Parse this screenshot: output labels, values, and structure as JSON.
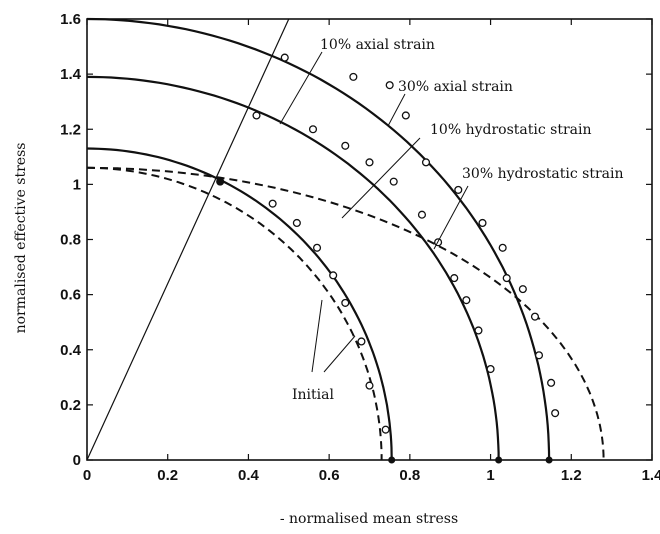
{
  "chart_data": {
    "type": "line",
    "title": "",
    "xlabel": "- normalised mean stress",
    "ylabel": "normalised effective stress",
    "xlim": [
      0,
      1.4
    ],
    "ylim": [
      0,
      1.6
    ],
    "xticks": [
      "0",
      "0.2",
      "0.4",
      "0.6",
      "0.8",
      "1",
      "1.2",
      "1.4"
    ],
    "yticks": [
      "0",
      "0.2",
      "0.4",
      "0.6",
      "0.8",
      "1",
      "1.2",
      "1.4",
      "1.6"
    ],
    "grid": false,
    "series": [
      {
        "style": "solid",
        "x_intercept": 0.755,
        "y_intercept": 1.13
      },
      {
        "style": "solid",
        "x_intercept": 1.02,
        "y_intercept": 1.39
      },
      {
        "style": "solid",
        "x_intercept": 1.145,
        "y_intercept": 1.6
      },
      {
        "style": "dashed",
        "x_intercept": 0.73,
        "y_intercept": 1.06
      },
      {
        "style": "dashed",
        "x_intercept": 1.28,
        "y_intercept": 1.06
      },
      {
        "style": "markers",
        "points": [
          [
            0.33,
            1.01
          ],
          [
            0.46,
            0.93
          ],
          [
            0.52,
            0.86
          ],
          [
            0.57,
            0.77
          ],
          [
            0.61,
            0.67
          ],
          [
            0.64,
            0.57
          ],
          [
            0.68,
            0.43
          ],
          [
            0.7,
            0.27
          ],
          [
            0.74,
            0.11
          ]
        ]
      },
      {
        "style": "markers",
        "points": [
          [
            0.42,
            1.25
          ],
          [
            0.56,
            1.2
          ],
          [
            0.64,
            1.14
          ],
          [
            0.7,
            1.08
          ],
          [
            0.76,
            1.01
          ],
          [
            0.83,
            0.89
          ],
          [
            0.87,
            0.79
          ],
          [
            0.91,
            0.66
          ],
          [
            0.94,
            0.58
          ],
          [
            0.97,
            0.47
          ],
          [
            1.0,
            0.33
          ]
        ]
      },
      {
        "style": "markers",
        "points": [
          [
            0.49,
            1.46
          ],
          [
            0.66,
            1.39
          ],
          [
            0.75,
            1.36
          ],
          [
            0.79,
            1.25
          ],
          [
            0.84,
            1.08
          ],
          [
            0.92,
            0.98
          ],
          [
            0.98,
            0.86
          ],
          [
            1.03,
            0.77
          ],
          [
            1.04,
            0.66
          ],
          [
            1.08,
            0.62
          ],
          [
            1.11,
            0.52
          ],
          [
            1.12,
            0.38
          ],
          [
            1.15,
            0.28
          ],
          [
            1.16,
            0.17
          ]
        ]
      }
    ],
    "reference_line": {
      "from": [
        0,
        0
      ],
      "to": [
        0.5,
        1.6
      ]
    },
    "annotations": [
      "10% axial strain",
      "30% axial strain",
      "10% hydrostatic strain",
      "30% hydrostatic strain",
      "Initial"
    ]
  }
}
